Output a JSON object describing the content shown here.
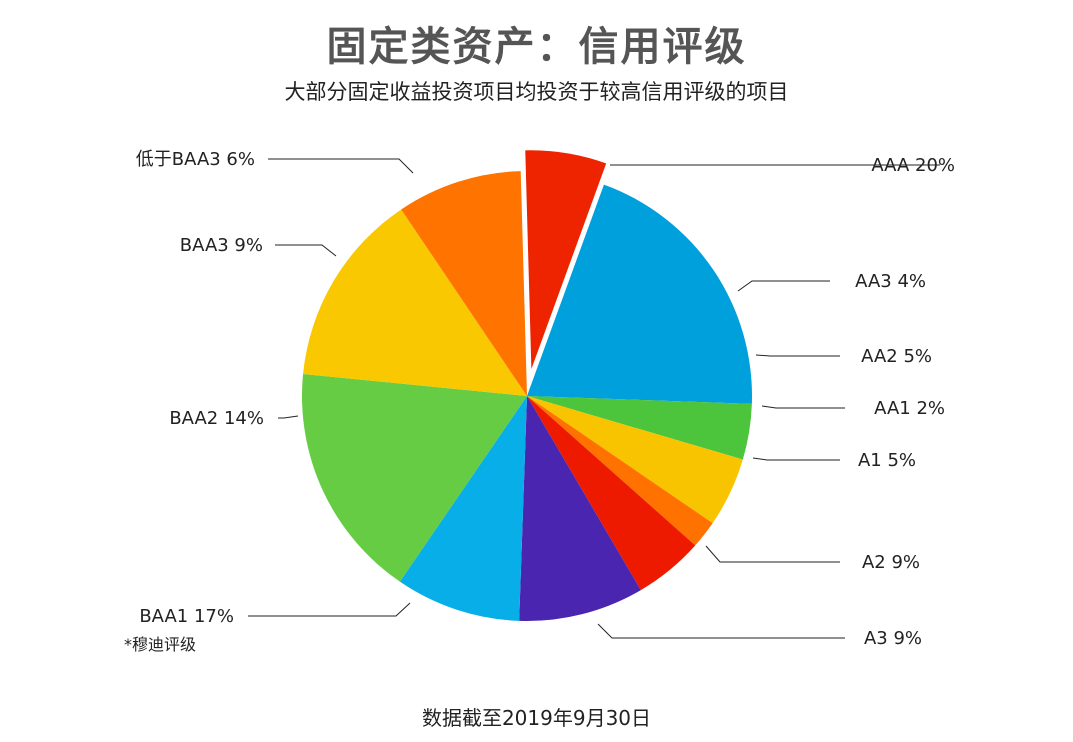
{
  "title": "固定类资产：信用评级",
  "subtitle": "大部分固定收益投资项目均投资于较高信用评级的项目",
  "footer": "数据截至2019年9月30日",
  "note": "*穆迪评级",
  "chart_data": {
    "type": "pie",
    "title": "固定类资产：信用评级",
    "subtitle": "大部分固定收益投资项目均投资于较高信用评级的项目",
    "unit": "%",
    "slices": [
      {
        "label": "AAA",
        "value": 20,
        "display": "20%",
        "color": "#00a0dc"
      },
      {
        "label": "AA3",
        "value": 4,
        "display": "4%",
        "color": "#4cc43c"
      },
      {
        "label": "AA2",
        "value": 5,
        "display": "5%",
        "color": "#f8c400"
      },
      {
        "label": "AA1",
        "value": 2,
        "display": "2%",
        "color": "#ff7200"
      },
      {
        "label": "A1",
        "value": 5,
        "display": "5%",
        "color": "#ee1a00"
      },
      {
        "label": "A2",
        "value": 9,
        "display": "9%",
        "color": "#4a26b0"
      },
      {
        "label": "A3",
        "value": 9,
        "display": "9%",
        "color": "#08aee8"
      },
      {
        "label": "BAA1",
        "value": 17,
        "display": "17%",
        "color": "#66cc44"
      },
      {
        "label": "BAA2",
        "value": 14,
        "display": "14%",
        "color": "#f9c800"
      },
      {
        "label": "BAA3",
        "value": 9,
        "display": "9%",
        "color": "#ff7400"
      },
      {
        "label": "低于BAA3",
        "value": 6,
        "display": "6%",
        "color": "#ee2400",
        "exploded": true
      }
    ]
  }
}
